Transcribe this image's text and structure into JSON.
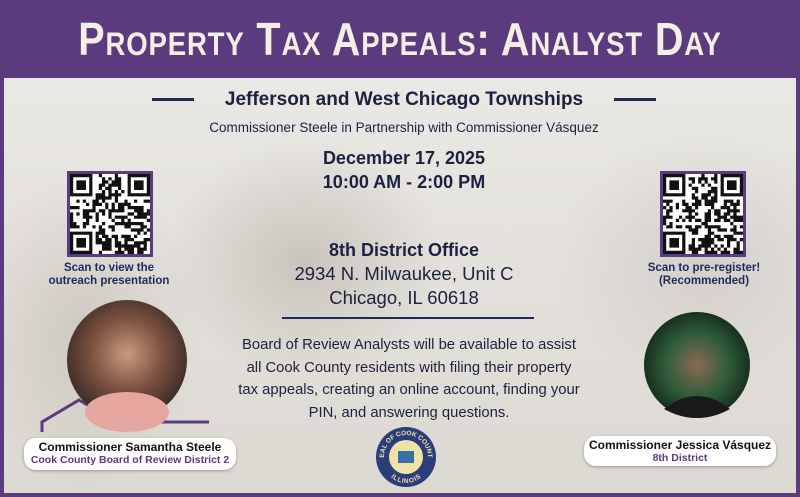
{
  "header": {
    "title": "Property Tax Appeals: Analyst Day"
  },
  "event": {
    "townships": "Jefferson and West Chicago Townships",
    "partnership": "Commissioner Steele in Partnership with Commissioner Vásquez",
    "date": "December 17, 2025",
    "time": "10:00 AM - 2:00 PM"
  },
  "location": {
    "name": "8th District Office",
    "address_lines": [
      "2934 N. Milwaukee, Unit C",
      "Chicago, IL 60618"
    ]
  },
  "qr_left": {
    "caption_lines": [
      "Scan to view the",
      "outreach presentation"
    ]
  },
  "qr_right": {
    "caption_lines": [
      "Scan to pre-register!",
      "(Recommended)"
    ]
  },
  "description_lines": [
    "Board of Review Analysts will be available to assist",
    "all Cook County residents with filing their property",
    "tax appeals, creating an online account, finding your",
    "PIN, and answering questions."
  ],
  "commissioners": [
    {
      "name": "Commissioner Samantha Steele",
      "title": "Cook County Board of Review District 2"
    },
    {
      "name": "Commissioner Jessica Vásquez",
      "title": "8th District"
    }
  ],
  "seal": {
    "top": "SEAL OF COOK COUNTY",
    "bottom": "ILLINOIS"
  }
}
